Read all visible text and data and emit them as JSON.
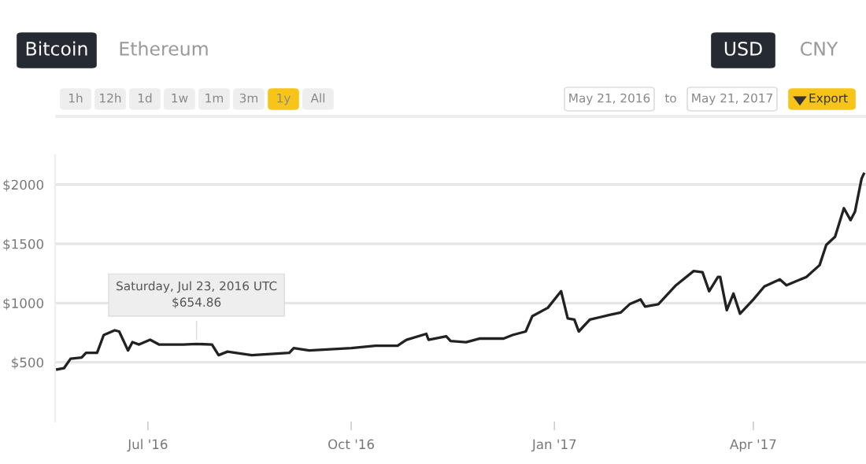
{
  "chart_data": {
    "type": "line",
    "x": [
      "2016-05-21",
      "2016-05-24",
      "2016-05-27",
      "2016-06-01",
      "2016-06-03",
      "2016-06-08",
      "2016-06-11",
      "2016-06-16",
      "2016-06-18",
      "2016-06-22",
      "2016-06-24",
      "2016-06-27",
      "2016-07-02",
      "2016-07-06",
      "2016-07-17",
      "2016-07-23",
      "2016-07-30",
      "2016-08-02",
      "2016-08-06",
      "2016-08-17",
      "2016-09-03",
      "2016-09-05",
      "2016-09-12",
      "2016-10-01",
      "2016-10-12",
      "2016-10-22",
      "2016-10-26",
      "2016-11-04",
      "2016-11-05",
      "2016-11-13",
      "2016-11-15",
      "2016-11-22",
      "2016-11-28",
      "2016-12-09",
      "2016-12-13",
      "2016-12-19",
      "2016-12-22",
      "2016-12-29",
      "2017-01-04",
      "2017-01-07",
      "2017-01-10",
      "2017-01-12",
      "2017-01-17",
      "2017-01-26",
      "2017-01-31",
      "2017-02-04",
      "2017-02-09",
      "2017-02-11",
      "2017-02-17",
      "2017-02-25",
      "2017-03-05",
      "2017-03-09",
      "2017-03-12",
      "2017-03-16",
      "2017-03-17",
      "2017-03-20",
      "2017-03-23",
      "2017-03-26",
      "2017-04-01",
      "2017-04-06",
      "2017-04-13",
      "2017-04-16",
      "2017-04-25",
      "2017-05-01",
      "2017-05-04",
      "2017-05-08",
      "2017-05-12",
      "2017-05-15",
      "2017-05-17",
      "2017-05-20",
      "2017-05-21"
    ],
    "series": [
      {
        "color": "#222222",
        "values": [
          440,
          450,
          530,
          540,
          580,
          580,
          730,
          770,
          760,
          600,
          670,
          650,
          690,
          650,
          650,
          655,
          650,
          560,
          590,
          560,
          580,
          620,
          600,
          620,
          640,
          640,
          690,
          740,
          690,
          720,
          680,
          670,
          700,
          700,
          730,
          760,
          890,
          960,
          1100,
          870,
          860,
          760,
          860,
          900,
          920,
          990,
          1030,
          970,
          990,
          1150,
          1270,
          1260,
          1100,
          1220,
          1220,
          940,
          1080,
          910,
          1030,
          1140,
          1200,
          1150,
          1220,
          1320,
          1490,
          1560,
          1800,
          1700,
          1770,
          2050,
          2090
        ]
      }
    ],
    "xlim": [
      "2016-05-20",
      "2017-05-22"
    ],
    "xticks": [
      {
        "value": "2016-07-01",
        "label": "Jul '16"
      },
      {
        "value": "2016-10-01",
        "label": "Oct '16"
      },
      {
        "value": "2017-01-01",
        "label": "Jan '17"
      },
      {
        "value": "2017-04-01",
        "label": "Apr '17"
      }
    ],
    "ylim": [
      0,
      2250
    ],
    "yticks": [
      {
        "value": 500,
        "label": "$500"
      },
      {
        "value": 1000,
        "label": "$1000"
      },
      {
        "value": 1500,
        "label": "$1500"
      },
      {
        "value": 2000,
        "label": "$2000"
      }
    ],
    "grid": "y",
    "line_style": "solid",
    "marker": "none",
    "annotations": [
      "Bitcoin",
      "Ethereum",
      "USD",
      "CNY",
      "1h",
      "12h",
      "1d",
      "1w",
      "1m",
      "3m",
      "1y",
      "All",
      "May 21, 2016",
      "to",
      "May 21, 2017",
      "Export",
      {
        "text": "Saturday, Jul 23, 2016 UTC\n$654.86",
        "x": "2016-07-23",
        "y": 654.86
      }
    ]
  }
}
